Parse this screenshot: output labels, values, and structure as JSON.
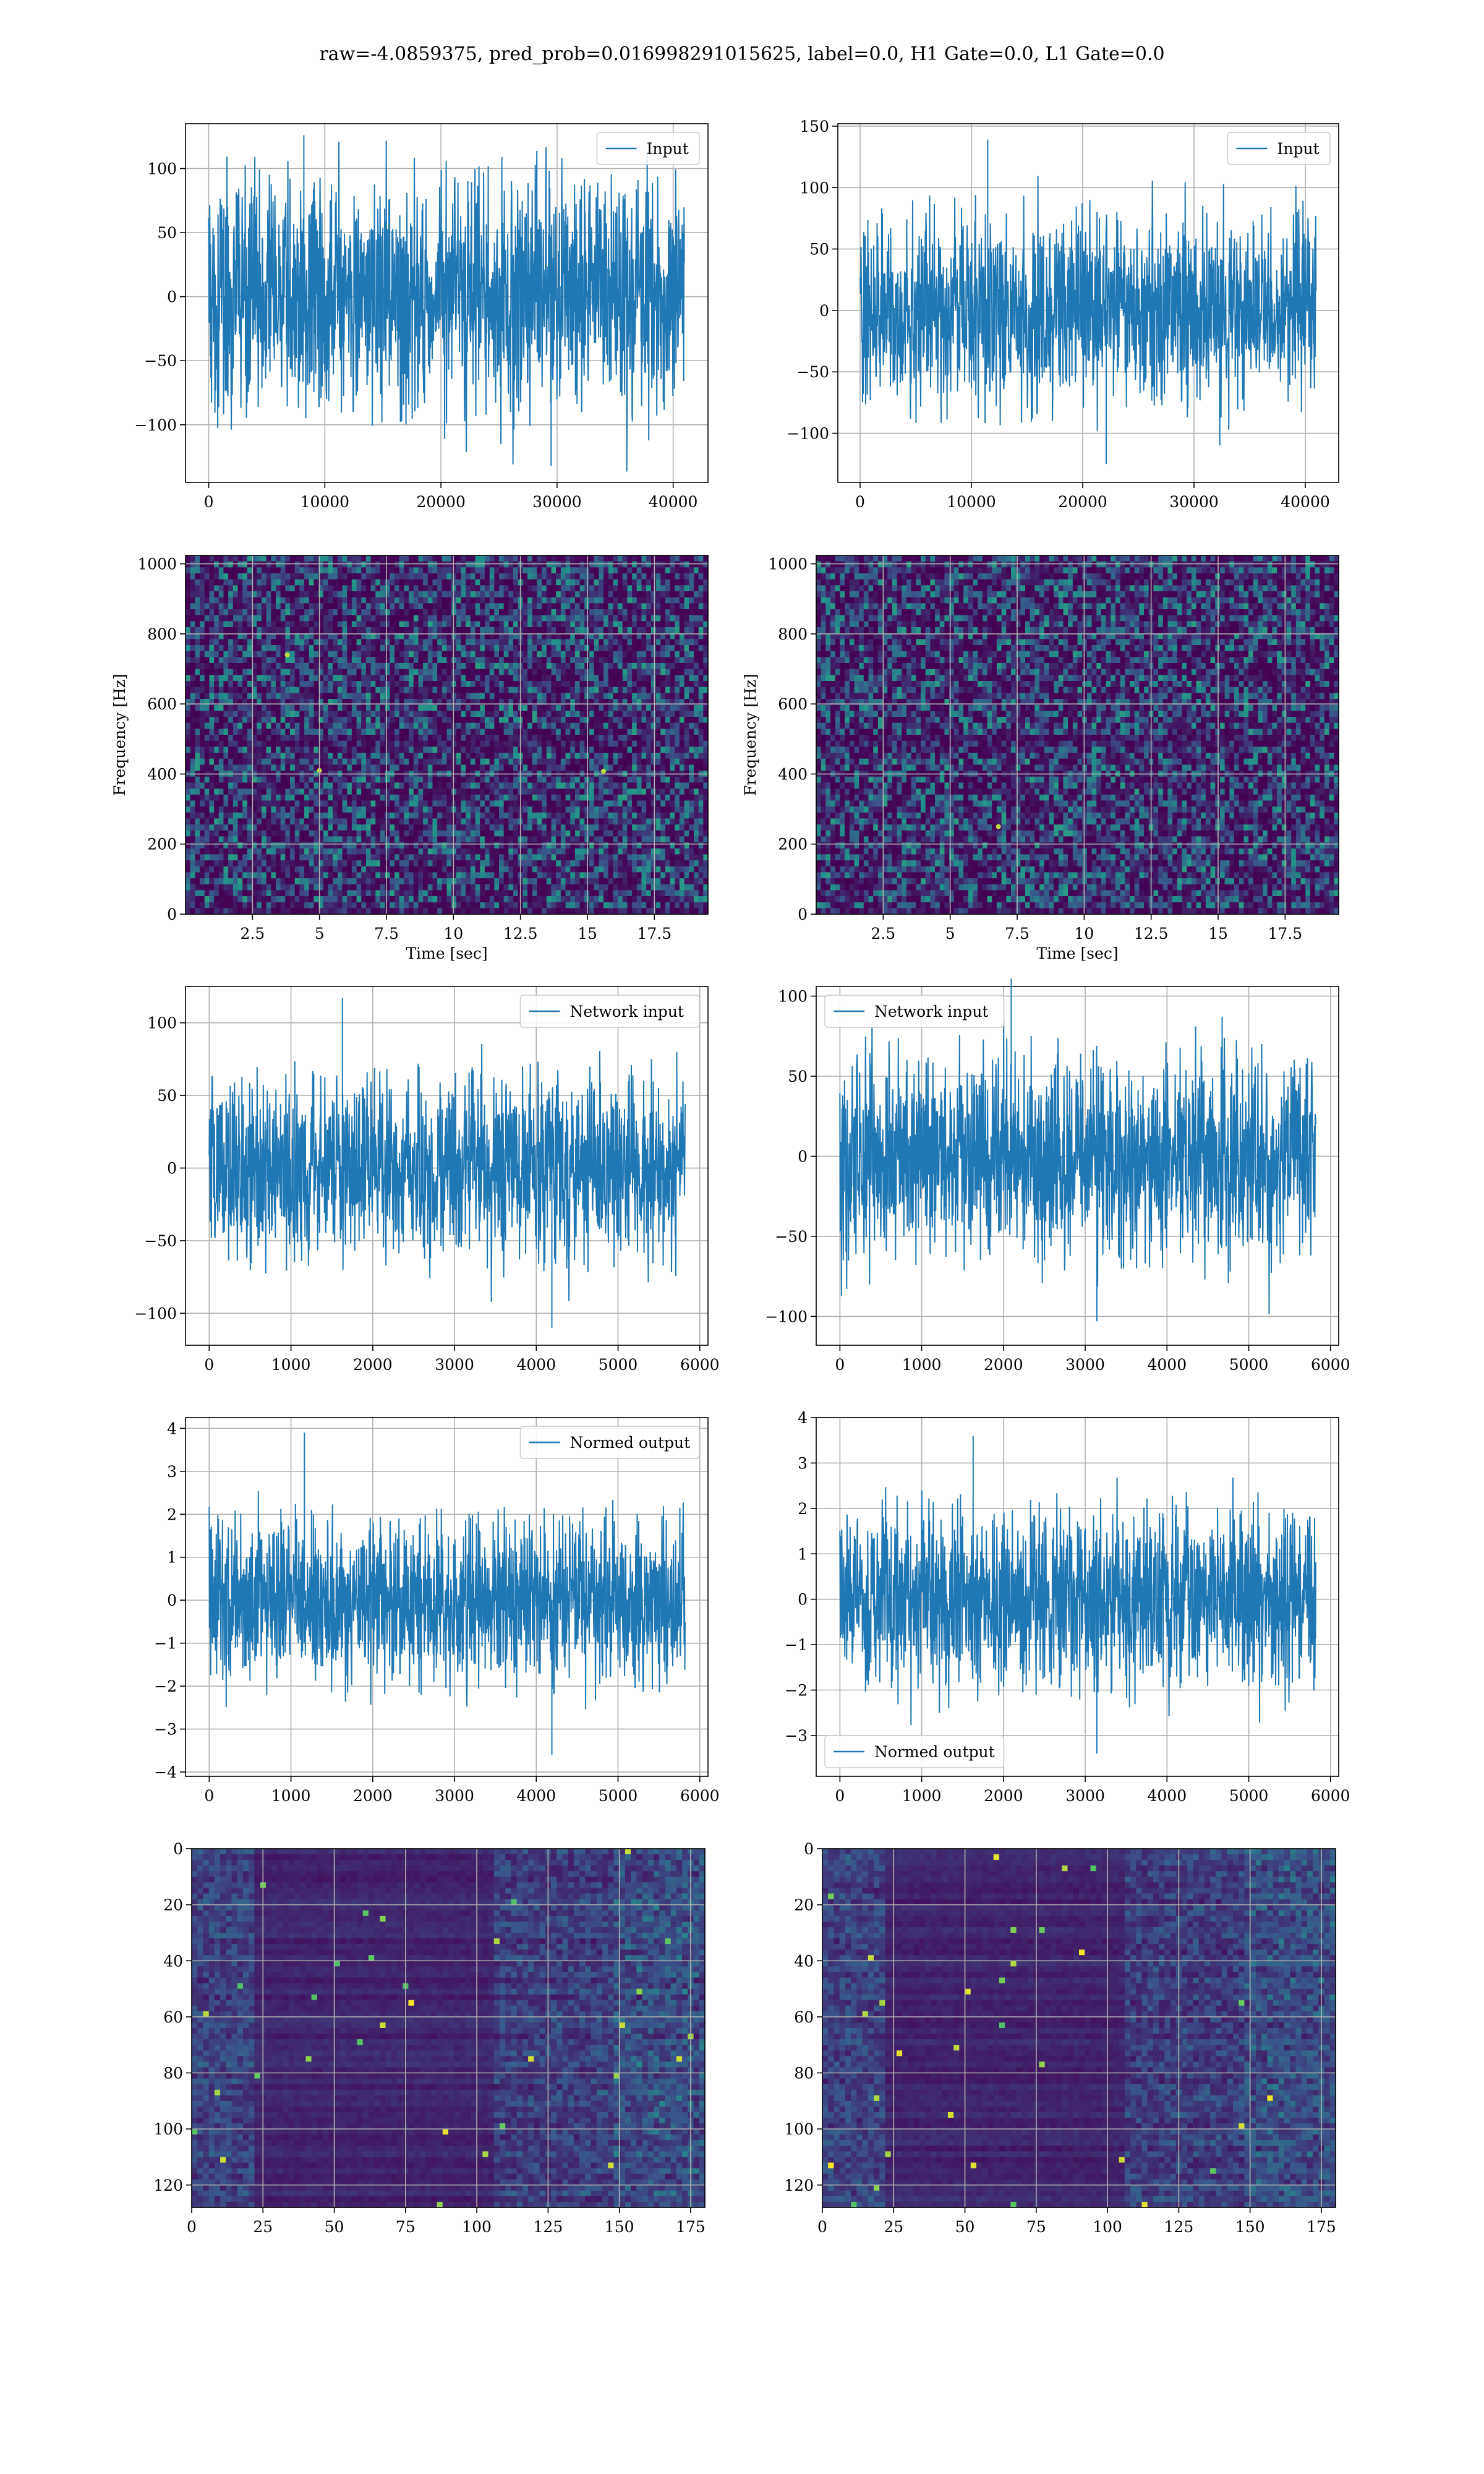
{
  "suptitle": "raw=-4.0859375, pred_prob=0.016998291015625, label=0.0, H1 Gate=0.0, L1 Gate=0.0",
  "colors": {
    "line": "#1f77b4",
    "grid": "#b0b0b0",
    "viridis_dark": "#440154",
    "viridis_mid": "#21918c",
    "viridis_bright": "#fde725"
  },
  "chart_data": [
    {
      "id": "input-h1",
      "type": "line",
      "legend": "Input",
      "legend_loc": "upper right",
      "xlim": [
        -2000,
        43000
      ],
      "ylim": [
        -145,
        135
      ],
      "xticks": [
        0,
        10000,
        20000,
        30000,
        40000
      ],
      "yticks": [
        -100,
        -50,
        0,
        50,
        100
      ],
      "series": [
        {
          "name": "Input",
          "x_range": [
            0,
            40960
          ],
          "core_amplitude": 60,
          "peak_max": 126,
          "peak_min": -132
        }
      ]
    },
    {
      "id": "input-l1",
      "type": "line",
      "legend": "Input",
      "legend_loc": "upper right",
      "xlim": [
        -2000,
        43000
      ],
      "ylim": [
        -140,
        152
      ],
      "xticks": [
        0,
        10000,
        20000,
        30000,
        40000
      ],
      "yticks": [
        -100,
        -50,
        0,
        50,
        100,
        150
      ],
      "series": [
        {
          "name": "Input",
          "x_range": [
            0,
            40960
          ],
          "core_amplitude": 52,
          "peak_max": 139,
          "peak_min": -125
        }
      ]
    },
    {
      "id": "spectrogram-h1",
      "type": "heatmap",
      "xlabel": "Time [sec]",
      "ylabel": "Frequency [Hz]",
      "xlim": [
        0,
        19.5
      ],
      "ylim": [
        0,
        1024
      ],
      "xticks": [
        2.5,
        5.0,
        7.5,
        10.0,
        12.5,
        15.0,
        17.5
      ],
      "yticks": [
        0,
        200,
        400,
        600,
        800,
        1000
      ],
      "colormap": "viridis",
      "hot_spots": [
        {
          "x": 3.8,
          "y": 740
        },
        {
          "x": 15.6,
          "y": 408
        },
        {
          "x": 5.0,
          "y": 410
        }
      ]
    },
    {
      "id": "spectrogram-l1",
      "type": "heatmap",
      "xlabel": "Time [sec]",
      "ylabel": "Frequency [Hz]",
      "xlim": [
        0,
        19.5
      ],
      "ylim": [
        0,
        1024
      ],
      "xticks": [
        2.5,
        5.0,
        7.5,
        10.0,
        12.5,
        15.0,
        17.5
      ],
      "yticks": [
        0,
        200,
        400,
        600,
        800,
        1000
      ],
      "colormap": "viridis",
      "hot_spots": [
        {
          "x": 6.8,
          "y": 250
        }
      ]
    },
    {
      "id": "network-input-h1",
      "type": "line",
      "legend": "Network input",
      "legend_loc": "upper right",
      "xlim": [
        -290,
        6100
      ],
      "ylim": [
        -122,
        125
      ],
      "xticks": [
        0,
        1000,
        2000,
        3000,
        4000,
        5000,
        6000
      ],
      "yticks": [
        -100,
        -50,
        0,
        50,
        100
      ],
      "series": [
        {
          "name": "Network input",
          "x_range": [
            0,
            5820
          ],
          "core_amplitude": 42,
          "peak_max": 117,
          "peak_min": -110
        }
      ]
    },
    {
      "id": "network-input-l1",
      "type": "line",
      "legend": "Network input",
      "legend_loc": "upper left",
      "xlim": [
        -290,
        6100
      ],
      "ylim": [
        -118,
        106
      ],
      "xticks": [
        0,
        1000,
        2000,
        3000,
        4000,
        5000,
        6000
      ],
      "yticks": [
        -100,
        -50,
        0,
        50,
        100
      ],
      "series": [
        {
          "name": "Network input",
          "x_range": [
            0,
            5820
          ],
          "core_amplitude": 42,
          "peak_max": 111,
          "peak_min": -103
        }
      ]
    },
    {
      "id": "normed-output-h1",
      "type": "line",
      "legend": "Normed output",
      "legend_loc": "upper right",
      "xlim": [
        -290,
        6100
      ],
      "ylim": [
        -4.1,
        4.25
      ],
      "xticks": [
        0,
        1000,
        2000,
        3000,
        4000,
        5000,
        6000
      ],
      "yticks": [
        -4,
        -3,
        -2,
        -1,
        0,
        1,
        2,
        3,
        4
      ],
      "series": [
        {
          "name": "Normed output",
          "x_range": [
            0,
            5820
          ],
          "core_amplitude": 1.3,
          "peak_max": 3.9,
          "peak_min": -3.6
        }
      ]
    },
    {
      "id": "normed-output-l1",
      "type": "line",
      "legend": "Normed output",
      "legend_loc": "lower left",
      "xlim": [
        -290,
        6100
      ],
      "ylim": [
        -3.9,
        4.0
      ],
      "xticks": [
        0,
        1000,
        2000,
        3000,
        4000,
        5000,
        6000
      ],
      "yticks": [
        -3,
        -2,
        -1,
        0,
        1,
        2,
        3,
        4
      ],
      "series": [
        {
          "name": "Normed output",
          "x_range": [
            0,
            5820
          ],
          "core_amplitude": 1.3,
          "peak_max": 3.6,
          "peak_min": -3.4
        }
      ]
    },
    {
      "id": "feature-map-h1",
      "type": "heatmap",
      "xlim": [
        0,
        180
      ],
      "ylim": [
        128,
        0
      ],
      "xticks": [
        0,
        25,
        50,
        75,
        100,
        125,
        150,
        175
      ],
      "yticks": [
        0,
        20,
        40,
        60,
        80,
        100,
        120
      ],
      "colormap": "viridis"
    },
    {
      "id": "feature-map-l1",
      "type": "heatmap",
      "xlim": [
        0,
        180
      ],
      "ylim": [
        128,
        0
      ],
      "xticks": [
        0,
        25,
        50,
        75,
        100,
        125,
        150,
        175
      ],
      "yticks": [
        0,
        20,
        40,
        60,
        80,
        100,
        120
      ],
      "colormap": "viridis"
    }
  ]
}
